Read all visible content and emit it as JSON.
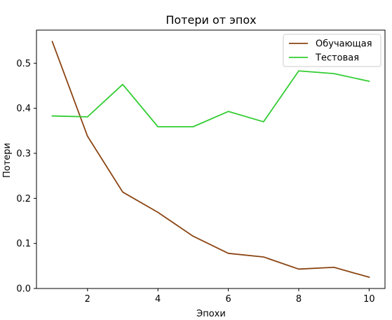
{
  "chart_data": {
    "type": "line",
    "title": "Потери от эпох",
    "xlabel": "Эпохи",
    "ylabel": "Потери",
    "x": [
      1,
      2,
      3,
      4,
      5,
      6,
      7,
      8,
      9,
      10
    ],
    "xlim": [
      0.55,
      10.45
    ],
    "ylim": [
      0,
      0.5735
    ],
    "xticks": [
      2,
      4,
      6,
      8,
      10
    ],
    "yticks": [
      0.0,
      0.1,
      0.2,
      0.3,
      0.4,
      0.5
    ],
    "ytick_labels": [
      "0.0",
      "0.1",
      "0.2",
      "0.3",
      "0.4",
      "0.5"
    ],
    "grid": false,
    "legend_position": "top-right",
    "series": [
      {
        "name": "Обучающая",
        "color": "#8B4513",
        "values": [
          0.548,
          0.338,
          0.214,
          0.169,
          0.116,
          0.078,
          0.07,
          0.043,
          0.047,
          0.025
        ]
      },
      {
        "name": "Тестовая",
        "color": "#32CD32",
        "values": [
          0.383,
          0.381,
          0.453,
          0.359,
          0.359,
          0.393,
          0.37,
          0.483,
          0.477,
          0.46
        ]
      }
    ]
  }
}
